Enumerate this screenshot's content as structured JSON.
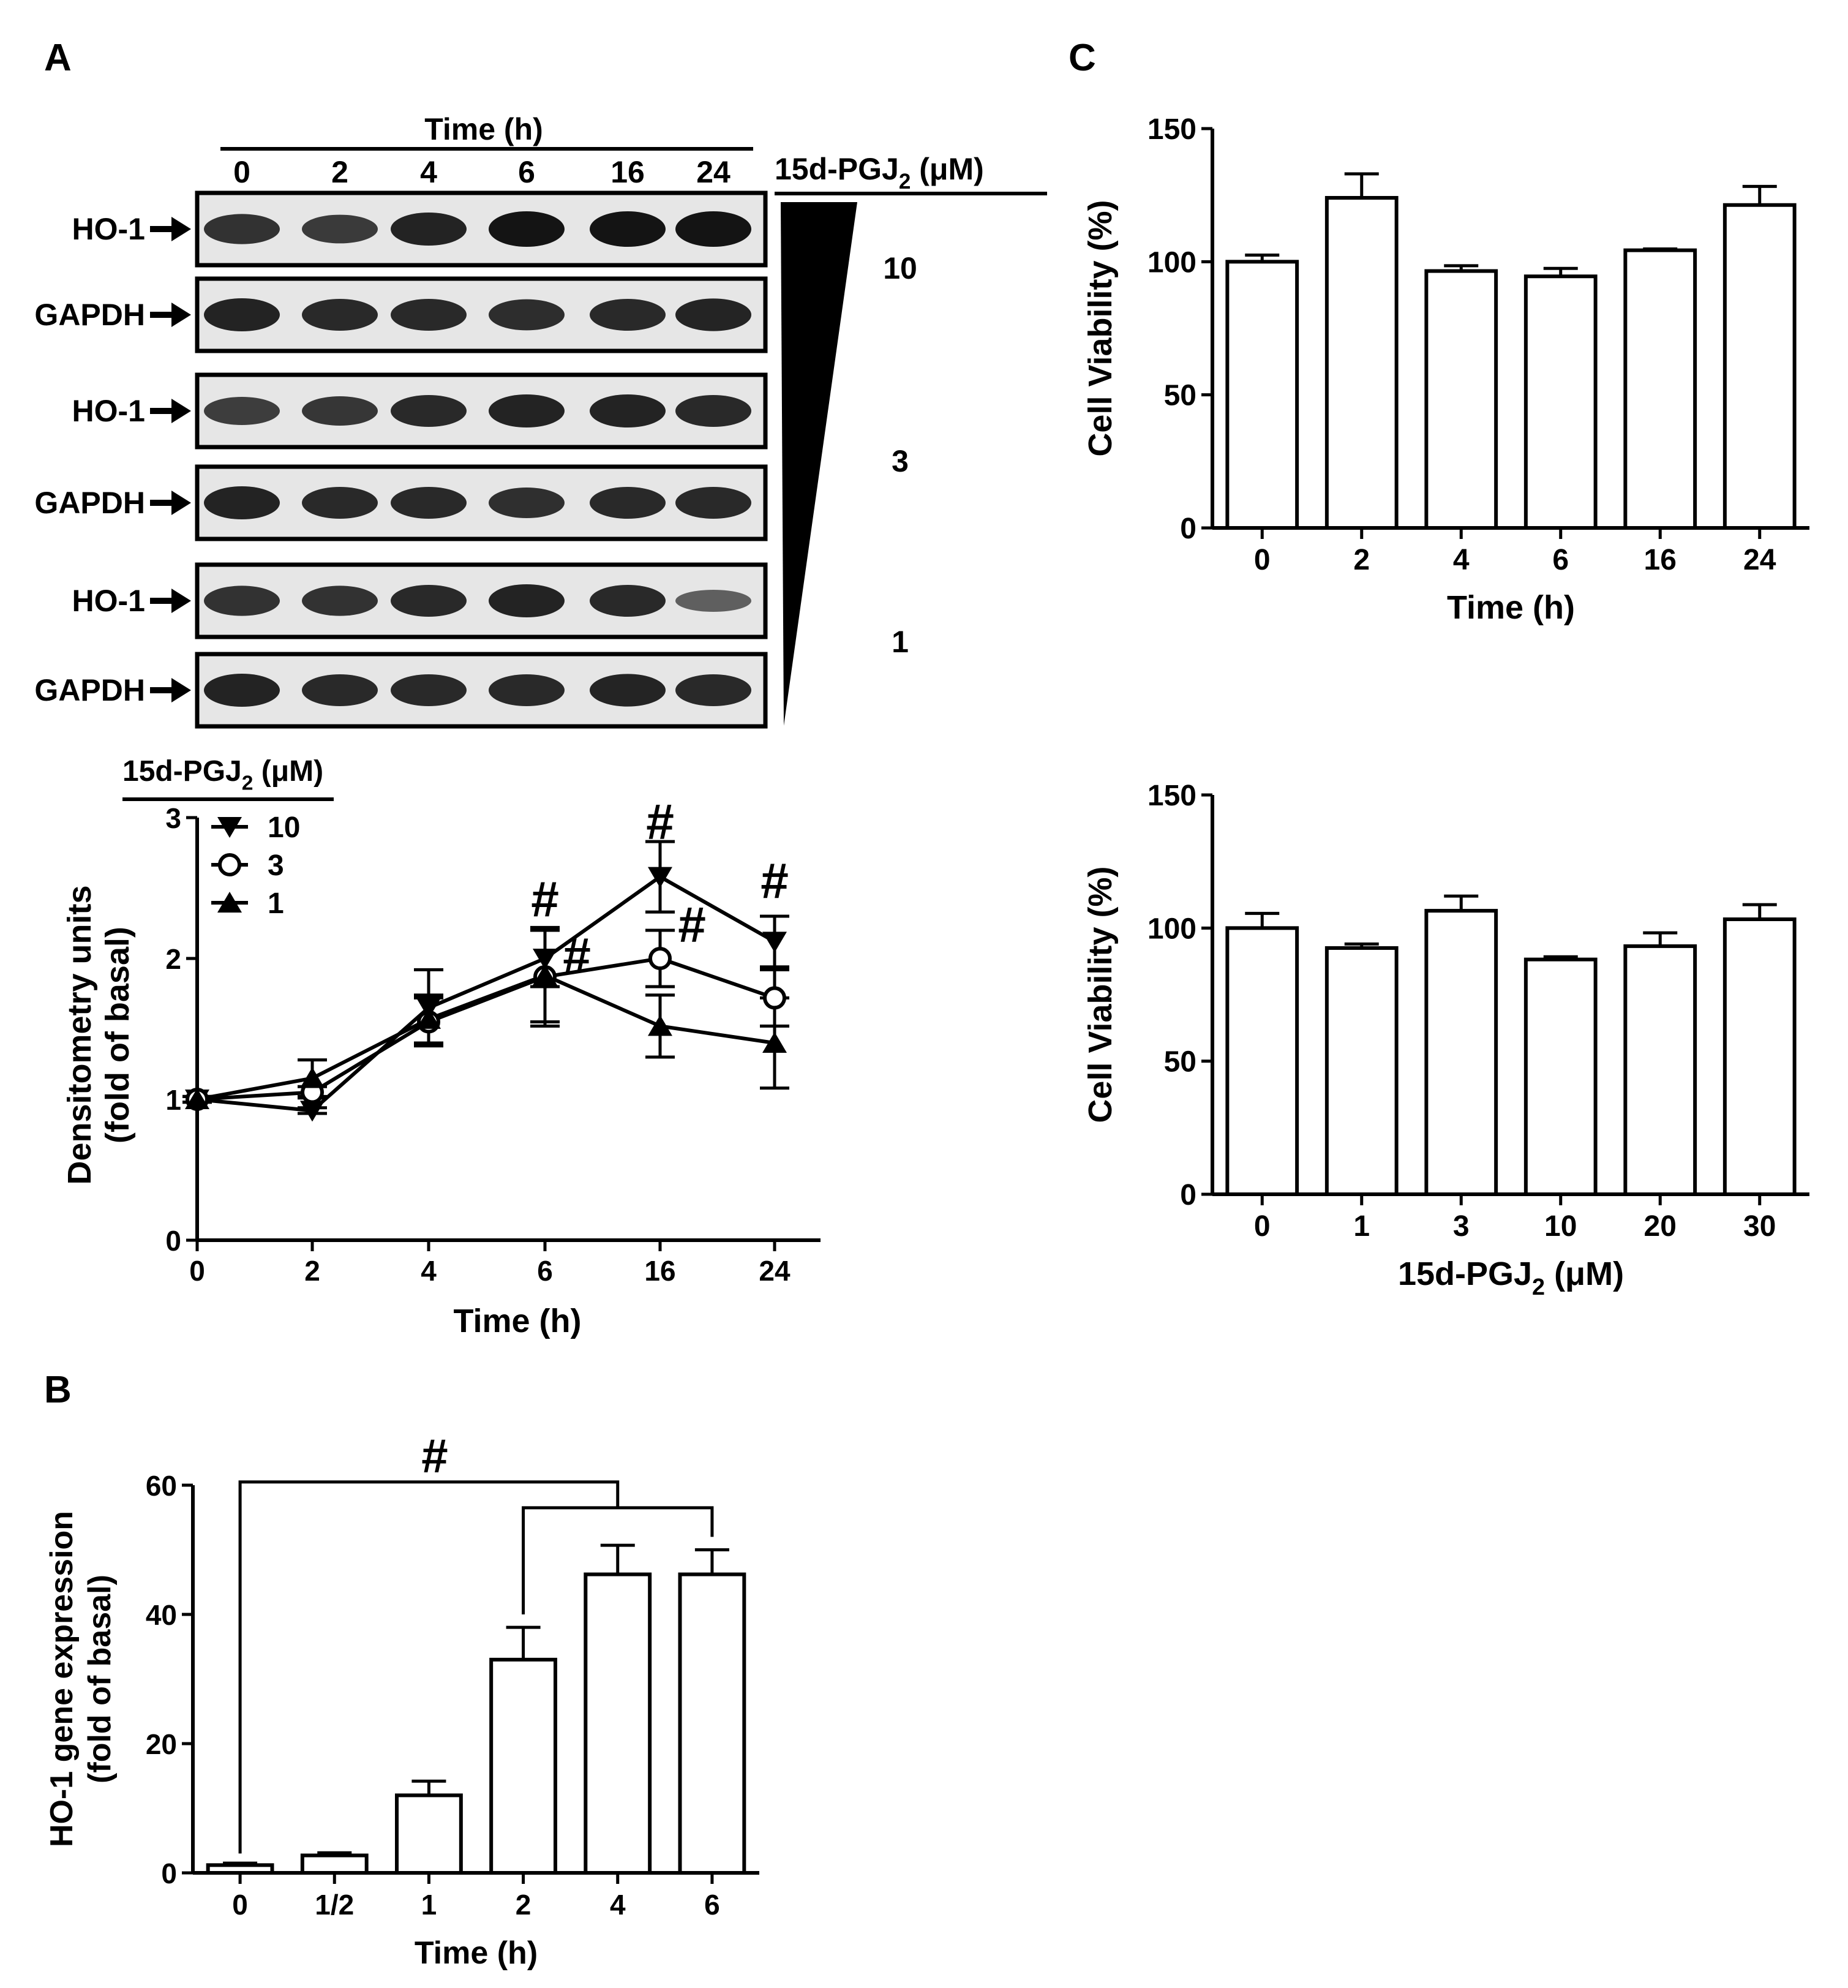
{
  "panels": {
    "a": "A",
    "b": "B",
    "c": "C"
  },
  "blot": {
    "header": "Time (h)",
    "lanes": [
      "0",
      "2",
      "4",
      "6",
      "16",
      "24"
    ],
    "treatment_prefix": "15d-PGJ",
    "treatment_sub": "2",
    "treatment_unit": " (μM)",
    "doses": [
      "10",
      "3",
      "1"
    ],
    "rows": [
      "HO-1",
      "GAPDH",
      "HO-1",
      "GAPDH",
      "HO-1",
      "GAPDH"
    ],
    "row_band_intensity": [
      [
        0.78,
        0.72,
        0.9,
        1.0,
        1.0,
        1.0
      ],
      [
        0.9,
        0.85,
        0.85,
        0.82,
        0.85,
        0.88
      ],
      [
        0.7,
        0.75,
        0.85,
        0.9,
        0.9,
        0.85
      ],
      [
        0.9,
        0.85,
        0.85,
        0.8,
        0.85,
        0.85
      ],
      [
        0.78,
        0.78,
        0.85,
        0.9,
        0.85,
        0.45
      ],
      [
        0.9,
        0.85,
        0.85,
        0.85,
        0.88,
        0.85
      ]
    ]
  },
  "chart_data": [
    {
      "id": "A-line",
      "type": "line",
      "title": "",
      "xlabel": "Time (h)",
      "ylabel": [
        "Densitometry units",
        "(fold of basal)"
      ],
      "categories": [
        "0",
        "2",
        "4",
        "6",
        "16",
        "24"
      ],
      "ylim": [
        0,
        3
      ],
      "yticks": [
        0,
        1,
        2,
        3
      ],
      "legend_title": {
        "prefix": "15d-PGJ",
        "sub": "2",
        "unit": " (μM)"
      },
      "series": [
        {
          "name": "10",
          "marker": "triangle-down",
          "values": [
            1.0,
            0.92,
            1.65,
            2.0,
            2.58,
            2.12
          ],
          "errors": [
            0.02,
            0.02,
            0.27,
            0.2,
            0.25,
            0.18
          ]
        },
        {
          "name": "3",
          "marker": "circle-open",
          "values": [
            1.0,
            1.05,
            1.55,
            1.87,
            2.0,
            1.72
          ],
          "errors": [
            0.02,
            0.04,
            0.17,
            0.35,
            0.2,
            0.2
          ]
        },
        {
          "name": "1",
          "marker": "triangle-up",
          "values": [
            1.0,
            1.15,
            1.57,
            1.88,
            1.52,
            1.4
          ],
          "errors": [
            0.02,
            0.13,
            0.17,
            0.33,
            0.22,
            0.32
          ]
        }
      ],
      "annotations": [
        {
          "text": "#",
          "x": "6",
          "y": 2.3
        },
        {
          "text": "#",
          "x": "6",
          "y": 1.9,
          "offset": "right"
        },
        {
          "text": "#",
          "x": "16",
          "y": 2.85
        },
        {
          "text": "#",
          "x": "16",
          "y": 2.12,
          "offset": "right"
        },
        {
          "text": "#",
          "x": "24",
          "y": 2.43
        }
      ]
    },
    {
      "id": "B-bar",
      "type": "bar",
      "title": "",
      "xlabel": "Time (h)",
      "ylabel": [
        "HO-1 gene expression",
        "(fold of basal)"
      ],
      "categories": [
        "0",
        "1/2",
        "1",
        "2",
        "4",
        "6"
      ],
      "values": [
        1.2,
        2.7,
        12.0,
        33.0,
        46.2,
        46.2
      ],
      "errors": [
        0.3,
        0.4,
        2.2,
        5.0,
        4.5,
        3.8
      ],
      "ylim": [
        0,
        60
      ],
      "yticks": [
        0,
        20,
        40,
        60
      ],
      "significance": {
        "symbol": "#",
        "from": [
          "0",
          "2"
        ],
        "to": [
          "4",
          "6"
        ]
      }
    },
    {
      "id": "C-top",
      "type": "bar",
      "title": "",
      "xlabel": "Time (h)",
      "ylabel": "Cell Viability (%)",
      "categories": [
        "0",
        "2",
        "4",
        "6",
        "16",
        "24"
      ],
      "values": [
        100,
        124,
        96.5,
        94.5,
        104.3,
        121.3
      ],
      "errors": [
        2.5,
        9.0,
        2.0,
        3.0,
        0.5,
        7.0
      ],
      "ylim": [
        0,
        150
      ],
      "yticks": [
        0,
        50,
        100,
        150
      ]
    },
    {
      "id": "C-bottom",
      "type": "bar",
      "title": "",
      "xlabel": {
        "prefix": "15d-PGJ",
        "sub": "2",
        "unit": " (μM)"
      },
      "ylabel": "Cell Viability (%)",
      "categories": [
        "0",
        "1",
        "3",
        "10",
        "20",
        "30"
      ],
      "values": [
        100,
        92.5,
        106.5,
        88.2,
        93.2,
        103.3
      ],
      "errors": [
        5.5,
        1.5,
        5.5,
        1.0,
        5.0,
        5.5
      ],
      "ylim": [
        0,
        150
      ],
      "yticks": [
        0,
        50,
        100,
        150
      ]
    }
  ]
}
